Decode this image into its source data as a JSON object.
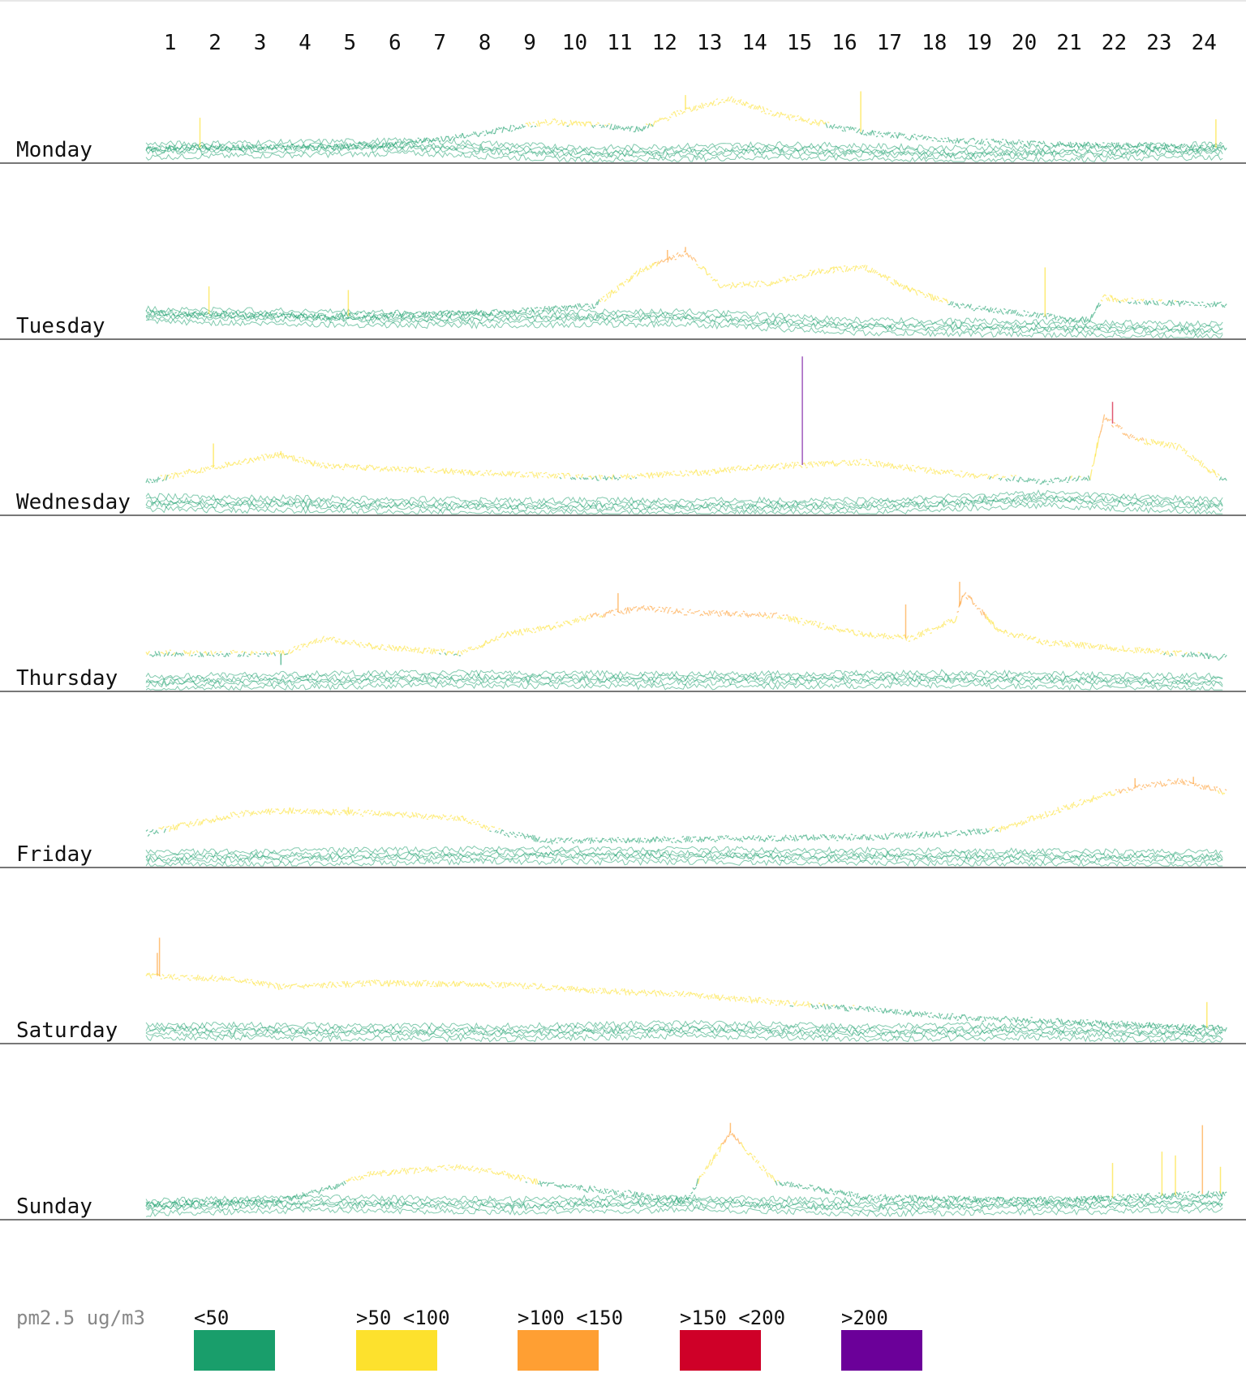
{
  "chart_data": {
    "type": "line",
    "title": "",
    "xlabel": "",
    "ylabel": "",
    "hours": [
      "1",
      "2",
      "3",
      "4",
      "5",
      "6",
      "7",
      "8",
      "9",
      "10",
      "11",
      "12",
      "13",
      "14",
      "15",
      "16",
      "17",
      "18",
      "19",
      "20",
      "21",
      "22",
      "23",
      "24"
    ],
    "x_range": [
      0,
      24
    ],
    "y_range": [
      0,
      220
    ],
    "grid": false,
    "legend_position": "bottom",
    "legend": {
      "title": "pm2.5 ug/m3",
      "items": [
        {
          "label": "<50",
          "color": "#199e6b"
        },
        {
          "label": ">50 <100",
          "color": "#fde12d"
        },
        {
          "label": ">100 <150",
          "color": "#ff9f33"
        },
        {
          "label": ">150 <200",
          "color": "#cf0028"
        },
        {
          "label": ">200",
          "color": "#6b0099"
        }
      ]
    },
    "days": [
      {
        "name": "Monday",
        "green_lines": [
          [
            0,
            20
          ],
          [
            6,
            25
          ],
          [
            10,
            15
          ],
          [
            14,
            20
          ],
          [
            18,
            15
          ],
          [
            24,
            20
          ]
        ],
        "upper_line": [
          [
            0,
            20
          ],
          [
            5,
            22
          ],
          [
            7,
            35
          ],
          [
            9,
            55
          ],
          [
            11,
            45
          ],
          [
            12,
            70
          ],
          [
            13,
            85
          ],
          [
            14,
            65
          ],
          [
            16,
            40
          ],
          [
            18,
            30
          ],
          [
            20,
            25
          ],
          [
            24,
            20
          ]
        ],
        "spikes": [
          [
            15.9,
            95
          ],
          [
            12.0,
            90
          ],
          [
            1.2,
            60
          ],
          [
            23.8,
            58
          ]
        ]
      },
      {
        "name": "Tuesday",
        "green_lines": [
          [
            0,
            35
          ],
          [
            6,
            30
          ],
          [
            12,
            32
          ],
          [
            16,
            20
          ],
          [
            20,
            18
          ],
          [
            24,
            15
          ]
        ],
        "upper_line": [
          [
            0,
            35
          ],
          [
            4,
            30
          ],
          [
            8,
            35
          ],
          [
            10,
            45
          ],
          [
            11,
            90
          ],
          [
            12,
            115
          ],
          [
            12.8,
            70
          ],
          [
            14,
            75
          ],
          [
            15,
            90
          ],
          [
            16,
            95
          ],
          [
            17,
            65
          ],
          [
            18,
            45
          ],
          [
            20,
            30
          ],
          [
            21,
            25
          ],
          [
            21.3,
            55
          ],
          [
            22,
            50
          ],
          [
            24,
            45
          ]
        ],
        "spikes": [
          [
            12.0,
            122
          ],
          [
            11.6,
            118
          ],
          [
            20.0,
            95
          ],
          [
            1.4,
            70
          ],
          [
            4.5,
            65
          ],
          [
            15.3,
            96
          ]
        ]
      },
      {
        "name": "Wednesday",
        "green_lines": [
          [
            0,
            20
          ],
          [
            8,
            15
          ],
          [
            16,
            15
          ],
          [
            20,
            25
          ],
          [
            24,
            15
          ]
        ],
        "upper_line": [
          [
            0,
            45
          ],
          [
            2,
            70
          ],
          [
            3,
            80
          ],
          [
            4,
            65
          ],
          [
            6,
            60
          ],
          [
            8,
            55
          ],
          [
            10,
            50
          ],
          [
            12,
            55
          ],
          [
            14,
            65
          ],
          [
            16,
            70
          ],
          [
            18,
            55
          ],
          [
            20,
            45
          ],
          [
            21,
            50
          ],
          [
            21.3,
            130
          ],
          [
            22,
            100
          ],
          [
            23,
            90
          ],
          [
            24,
            45
          ]
        ],
        "spikes": [
          [
            14.6,
            210
          ],
          [
            21.5,
            150
          ],
          [
            1.5,
            95
          ],
          [
            3.0,
            85
          ]
        ]
      },
      {
        "name": "Thursday",
        "green_lines": [
          [
            0,
            15
          ],
          [
            6,
            20
          ],
          [
            12,
            18
          ],
          [
            18,
            20
          ],
          [
            24,
            15
          ]
        ],
        "upper_line": [
          [
            0,
            50
          ],
          [
            3,
            50
          ],
          [
            4,
            70
          ],
          [
            5,
            60
          ],
          [
            7,
            50
          ],
          [
            8,
            75
          ],
          [
            9,
            85
          ],
          [
            10,
            100
          ],
          [
            11,
            110
          ],
          [
            12,
            105
          ],
          [
            14,
            100
          ],
          [
            16,
            75
          ],
          [
            17,
            70
          ],
          [
            18,
            95
          ],
          [
            18.2,
            130
          ],
          [
            19,
            80
          ],
          [
            20,
            65
          ],
          [
            22,
            55
          ],
          [
            24,
            45
          ]
        ],
        "spikes": [
          [
            18.1,
            145
          ],
          [
            10.5,
            130
          ],
          [
            16.9,
            115
          ],
          [
            3.0,
            35
          ]
        ]
      },
      {
        "name": "Friday",
        "green_lines": [
          [
            0,
            15
          ],
          [
            8,
            20
          ],
          [
            16,
            18
          ],
          [
            24,
            15
          ]
        ],
        "upper_line": [
          [
            0,
            45
          ],
          [
            2,
            70
          ],
          [
            3,
            75
          ],
          [
            5,
            72
          ],
          [
            7,
            65
          ],
          [
            8,
            45
          ],
          [
            9,
            35
          ],
          [
            16,
            40
          ],
          [
            18,
            45
          ],
          [
            19,
            50
          ],
          [
            20,
            70
          ],
          [
            21,
            90
          ],
          [
            22,
            105
          ],
          [
            23,
            115
          ],
          [
            24,
            100
          ]
        ],
        "spikes": [
          [
            22.0,
            118
          ],
          [
            23.3,
            120
          ],
          [
            4.5,
            80
          ]
        ]
      },
      {
        "name": "Saturday",
        "green_lines": [
          [
            0,
            20
          ],
          [
            8,
            18
          ],
          [
            12,
            22
          ],
          [
            16,
            18
          ],
          [
            20,
            20
          ],
          [
            24,
            15
          ]
        ],
        "upper_line": [
          [
            0,
            90
          ],
          [
            2,
            85
          ],
          [
            3,
            75
          ],
          [
            5,
            80
          ],
          [
            8,
            78
          ],
          [
            10,
            70
          ],
          [
            12,
            65
          ],
          [
            14,
            55
          ],
          [
            16,
            45
          ],
          [
            18,
            35
          ],
          [
            20,
            30
          ],
          [
            24,
            20
          ]
        ],
        "spikes": [
          [
            0.3,
            140
          ],
          [
            0.25,
            120
          ],
          [
            23.6,
            55
          ]
        ]
      },
      {
        "name": "Sunday",
        "green_lines": [
          [
            0,
            20
          ],
          [
            4,
            25
          ],
          [
            8,
            22
          ],
          [
            12,
            25
          ],
          [
            16,
            20
          ],
          [
            20,
            22
          ],
          [
            24,
            25
          ]
        ],
        "upper_line": [
          [
            0,
            20
          ],
          [
            3,
            25
          ],
          [
            4,
            40
          ],
          [
            5,
            60
          ],
          [
            6,
            65
          ],
          [
            7,
            70
          ],
          [
            8,
            60
          ],
          [
            9,
            45
          ],
          [
            10,
            40
          ],
          [
            12,
            25
          ],
          [
            13,
            115
          ],
          [
            14,
            50
          ],
          [
            16,
            30
          ],
          [
            20,
            25
          ],
          [
            22,
            30
          ],
          [
            24,
            35
          ]
        ],
        "spikes": [
          [
            13.0,
            128
          ],
          [
            23.5,
            125
          ],
          [
            22.6,
            90
          ],
          [
            22.9,
            85
          ],
          [
            21.5,
            75
          ],
          [
            23.9,
            70
          ]
        ]
      }
    ]
  }
}
